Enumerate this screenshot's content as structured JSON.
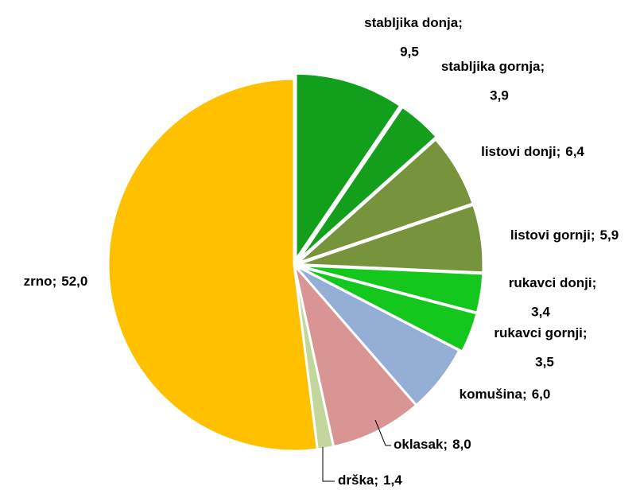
{
  "chart_data": {
    "type": "pie",
    "categories": [
      "stabljika donja",
      "stabljika gornja",
      "listovi donji",
      "listovi gornji",
      "rukavci donji",
      "rukavci gornji",
      "komušina",
      "oklasak",
      "drška",
      "zrno"
    ],
    "values": [
      9.5,
      3.9,
      6.4,
      5.9,
      3.4,
      3.5,
      6.0,
      8.0,
      1.4,
      52.0
    ],
    "value_labels": [
      "9,5",
      "3,9",
      "6,4",
      "5,9",
      "3,4",
      "3,5",
      "6,0",
      "8,0",
      "1,4",
      "52,0"
    ],
    "label_separator": ";",
    "colors": [
      "#119f1c",
      "#139e1c",
      "#77933c",
      "#77933c",
      "#13c71d",
      "#13c71d",
      "#95aed6",
      "#d99594",
      "#c3d69b",
      "#ffc000"
    ]
  }
}
